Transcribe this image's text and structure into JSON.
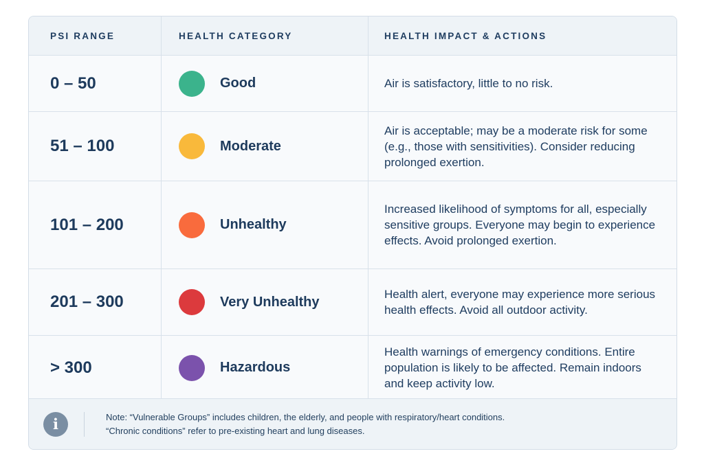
{
  "headers": {
    "psi_range": "PSI RANGE",
    "health_category": "HEALTH CATEGORY",
    "health_impact": "HEALTH IMPACT & ACTIONS"
  },
  "rows": [
    {
      "range": "0 – 50",
      "category": "Good",
      "color": "#3bb38c",
      "impact": "Air is satisfactory, little to no risk."
    },
    {
      "range": "51 – 100",
      "category": "Moderate",
      "color": "#f9b93b",
      "impact": "Air is acceptable; may be a moderate risk for some (e.g., those with sensitivities). Consider reducing prolonged exertion."
    },
    {
      "range": "101 – 200",
      "category": "Unhealthy",
      "color": "#f96b3d",
      "impact": "Increased likelihood of symptoms for all, especially sensitive groups. Everyone may begin to experience effects. Avoid prolonged exertion."
    },
    {
      "range": "201 – 300",
      "category": "Very Unhealthy",
      "color": "#dc3a3d",
      "impact": "Health alert, everyone may experience more serious health effects. Avoid all outdoor activity."
    },
    {
      "range": "> 300",
      "category": "Hazardous",
      "color": "#7b52ac",
      "impact": "Health warnings of emergency conditions. Entire population is likely to be affected. Remain indoors and keep activity low."
    }
  ],
  "footer": {
    "icon": "info-icon",
    "icon_glyph": "i",
    "note_line1": "Note: “Vulnerable Groups” includes children, the elderly, and people with respiratory/heart conditions.",
    "note_line2": "“Chronic conditions” refer to pre-existing heart and lung diseases."
  }
}
